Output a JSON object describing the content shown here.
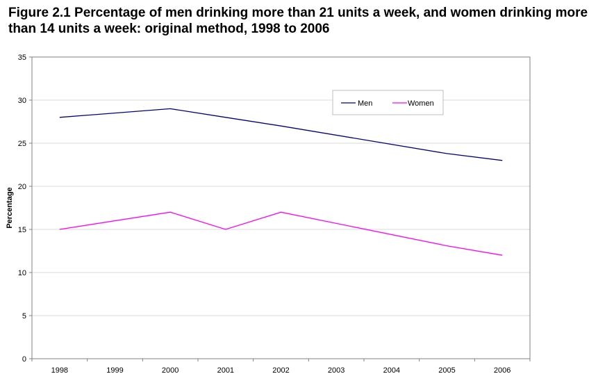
{
  "chart_data": {
    "type": "line",
    "title": "Figure 2.1  Percentage of men drinking more than 21 units a week, and women drinking more than 14 units a week: original method, 1998 to 2006",
    "xlabel": "",
    "ylabel": "Percentage",
    "categories": [
      "1998",
      "1999",
      "2000",
      "2001",
      "2002",
      "2003",
      "2004",
      "2005",
      "2006"
    ],
    "ylim": [
      0,
      35
    ],
    "yticks": [
      0,
      5,
      10,
      15,
      20,
      25,
      30,
      35
    ],
    "grid": "horizontal",
    "legend_position": "top-right",
    "series": [
      {
        "name": "Men",
        "color": "#000080",
        "points": [
          [
            "1998",
            28
          ],
          [
            "2000",
            29
          ],
          [
            "2001",
            28
          ],
          [
            "2002",
            27
          ],
          [
            "2005",
            23.8
          ],
          [
            "2006",
            23
          ]
        ]
      },
      {
        "name": "Women",
        "color": "#ff00ff",
        "points": [
          [
            "1998",
            15
          ],
          [
            "2000",
            17
          ],
          [
            "2001",
            15
          ],
          [
            "2002",
            17
          ],
          [
            "2005",
            13.1
          ],
          [
            "2006",
            12
          ]
        ]
      }
    ]
  }
}
